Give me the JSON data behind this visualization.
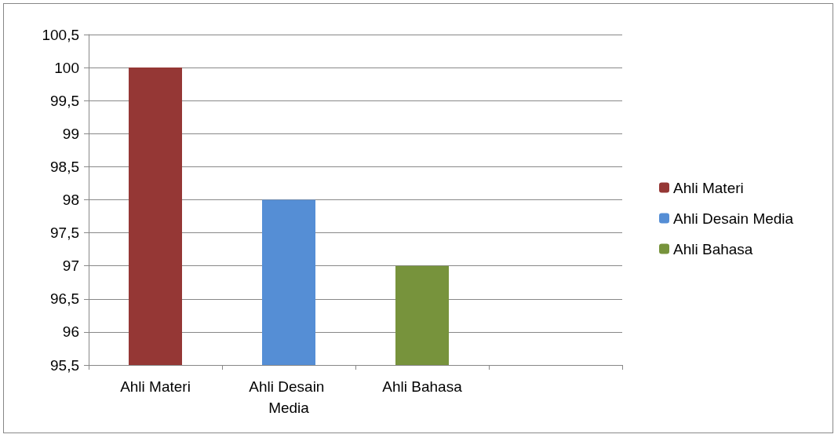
{
  "chart_data": {
    "type": "bar",
    "categories": [
      "Ahli Materi",
      "Ahli Desain Media",
      "Ahli Bahasa",
      null
    ],
    "series": [
      {
        "name": "Ahli Materi",
        "color": "#953735",
        "values": [
          100,
          null,
          null,
          null
        ]
      },
      {
        "name": "Ahli Desain Media",
        "color": "#558ed5",
        "values": [
          null,
          98,
          null,
          null
        ]
      },
      {
        "name": "Ahli Bahasa",
        "color": "#77933c",
        "values": [
          null,
          null,
          97,
          null
        ]
      }
    ],
    "ylim": [
      95.5,
      100.5
    ],
    "yticks": [
      {
        "value": 95.5,
        "label": "95,5"
      },
      96,
      {
        "value": 96.5,
        "label": "96,5"
      },
      97,
      {
        "value": 97.5,
        "label": "97,5"
      },
      98,
      {
        "value": 98.5,
        "label": "98,5"
      },
      99,
      {
        "value": 99.5,
        "label": "99,5"
      },
      100,
      {
        "value": 100.5,
        "label": "100,5"
      }
    ],
    "grid": "y",
    "legend": "right"
  }
}
